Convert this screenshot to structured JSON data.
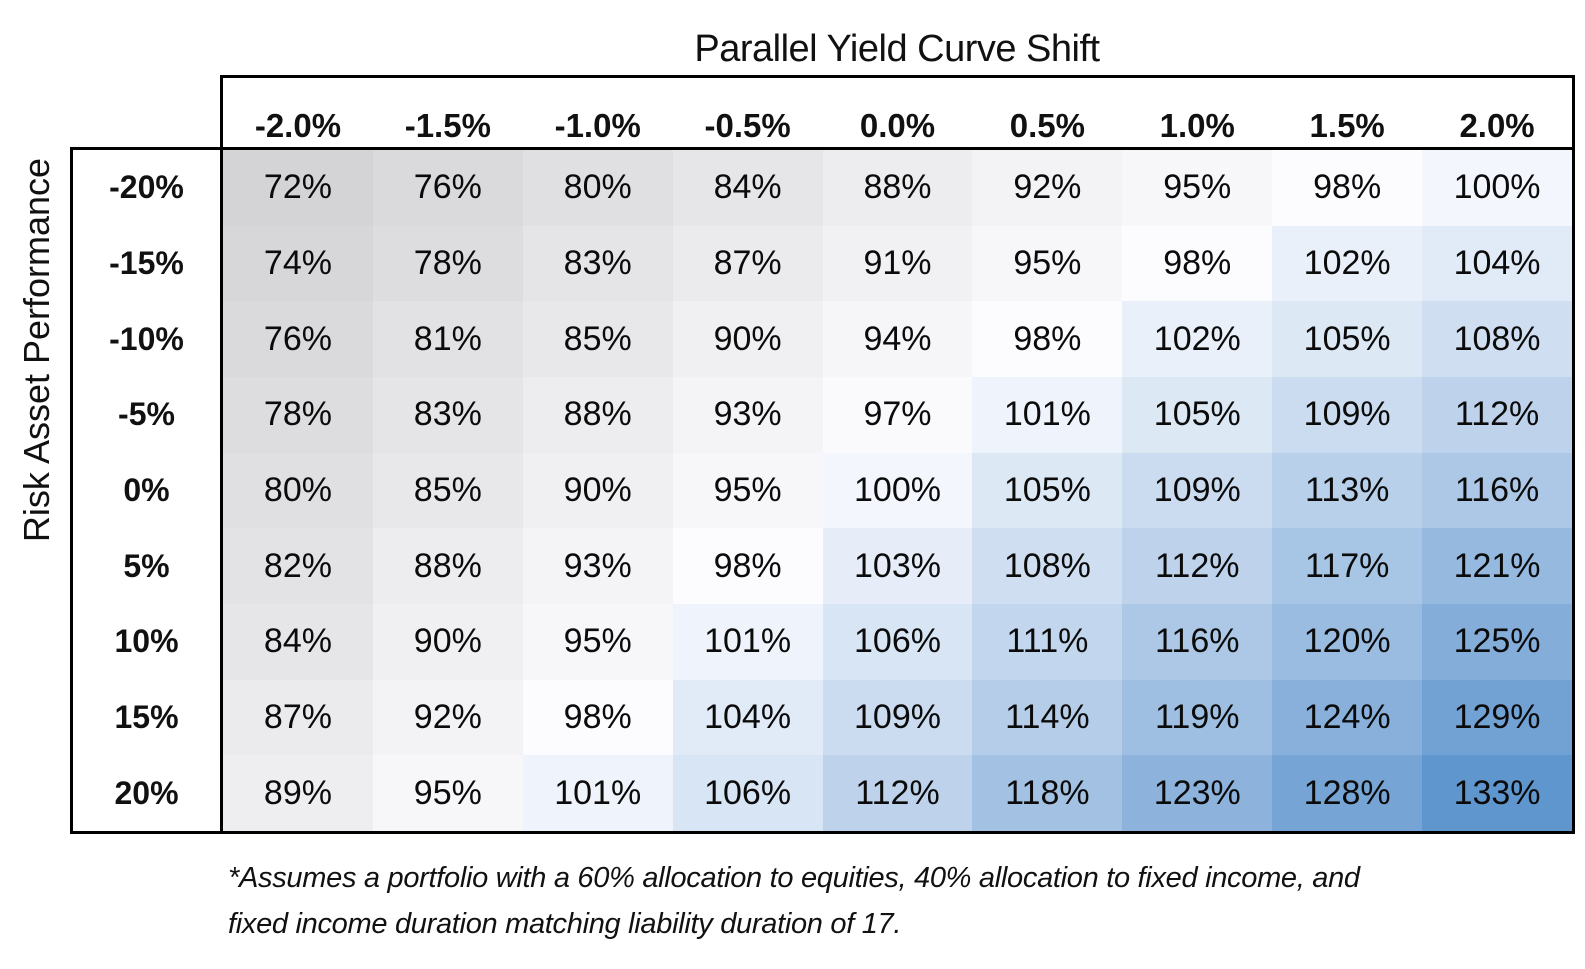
{
  "title": "Parallel Yield Curve Shift",
  "footnote": {
    "line1": "*Assumes a portfolio with a 60% allocation to equities, 40% allocation to fixed income, and",
    "line2": "fixed income duration matching liability duration of 17."
  },
  "chart_data": {
    "type": "heatmap",
    "title": "Parallel Yield Curve Shift",
    "x_label": "Parallel Yield Curve Shift",
    "y_label": "Risk Asset Performance",
    "columns": [
      "-2.0%",
      "-1.5%",
      "-1.0%",
      "-0.5%",
      "0.0%",
      "0.5%",
      "1.0%",
      "1.5%",
      "2.0%"
    ],
    "rows": [
      "-20%",
      "-15%",
      "-10%",
      "-5%",
      "0%",
      "5%",
      "10%",
      "15%",
      "20%"
    ],
    "values": [
      [
        72,
        76,
        80,
        84,
        88,
        92,
        95,
        98,
        100
      ],
      [
        74,
        78,
        83,
        87,
        91,
        95,
        98,
        102,
        104
      ],
      [
        76,
        81,
        85,
        90,
        94,
        98,
        102,
        105,
        108
      ],
      [
        78,
        83,
        88,
        93,
        97,
        101,
        105,
        109,
        112
      ],
      [
        80,
        85,
        90,
        95,
        100,
        105,
        109,
        113,
        116
      ],
      [
        82,
        88,
        93,
        98,
        103,
        108,
        112,
        117,
        121
      ],
      [
        84,
        90,
        95,
        101,
        106,
        111,
        116,
        120,
        125
      ],
      [
        87,
        92,
        98,
        104,
        109,
        114,
        119,
        124,
        129
      ],
      [
        89,
        95,
        101,
        106,
        112,
        118,
        123,
        128,
        133
      ]
    ],
    "value_suffix": "%",
    "grid": false,
    "legend": "none",
    "color_scale": {
      "min": {
        "value": 72,
        "color": "#D4D4D6"
      },
      "mid": {
        "value": 98,
        "color": "#FCFCFF"
      },
      "max": {
        "value": 133,
        "color": "#6096CE"
      }
    }
  }
}
